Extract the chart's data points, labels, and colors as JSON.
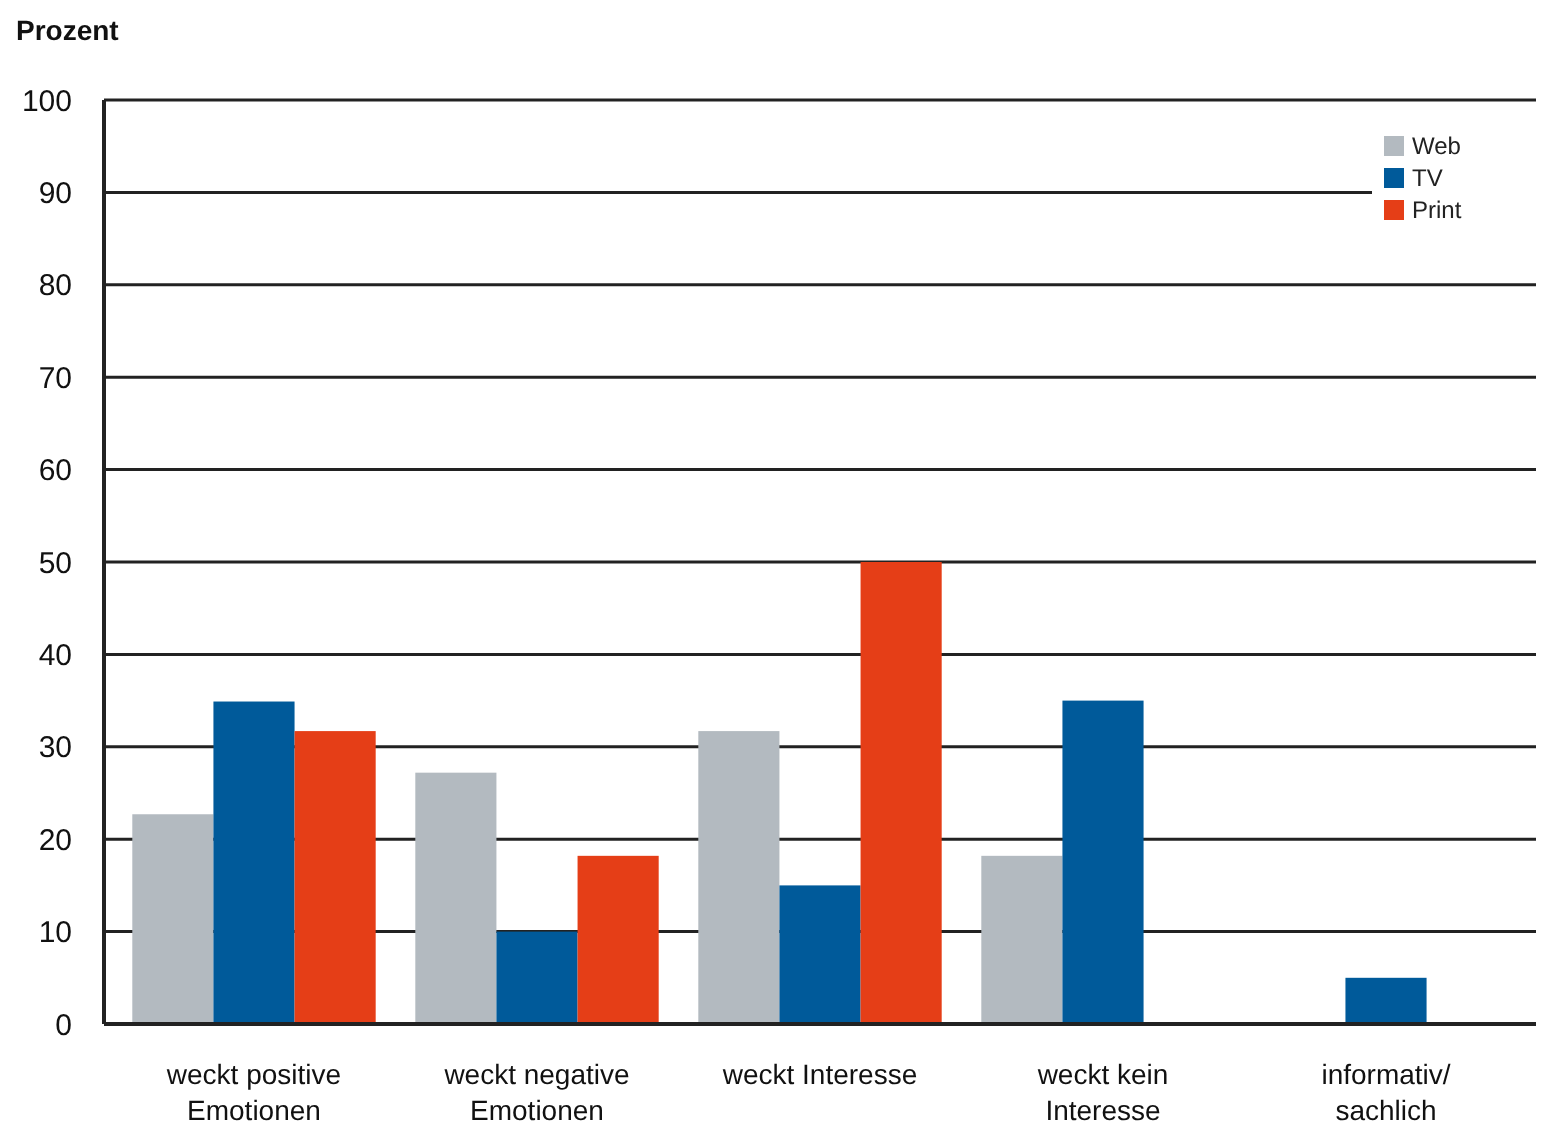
{
  "chart_data": {
    "type": "bar",
    "ylabel": "Prozent",
    "categories": [
      "weckt positive Emotionen",
      "weckt negative Emotionen",
      "weckt Interesse",
      "weckt kein Interesse",
      "informativ/ sachlich"
    ],
    "series": [
      {
        "name": "Web",
        "color": "#b3bac0",
        "values": [
          22.7,
          27.2,
          31.7,
          18.2,
          null
        ]
      },
      {
        "name": "TV",
        "color": "#005a9a",
        "values": [
          34.9,
          10,
          15,
          35,
          5
        ]
      },
      {
        "name": "Print",
        "color": "#e53e17",
        "values": [
          31.7,
          18.2,
          50,
          null,
          null
        ]
      }
    ],
    "ylim": [
      0,
      100
    ],
    "yticks": [
      0,
      10,
      20,
      30,
      40,
      50,
      60,
      70,
      80,
      90,
      100
    ],
    "grid": "y",
    "legend": "top right"
  }
}
